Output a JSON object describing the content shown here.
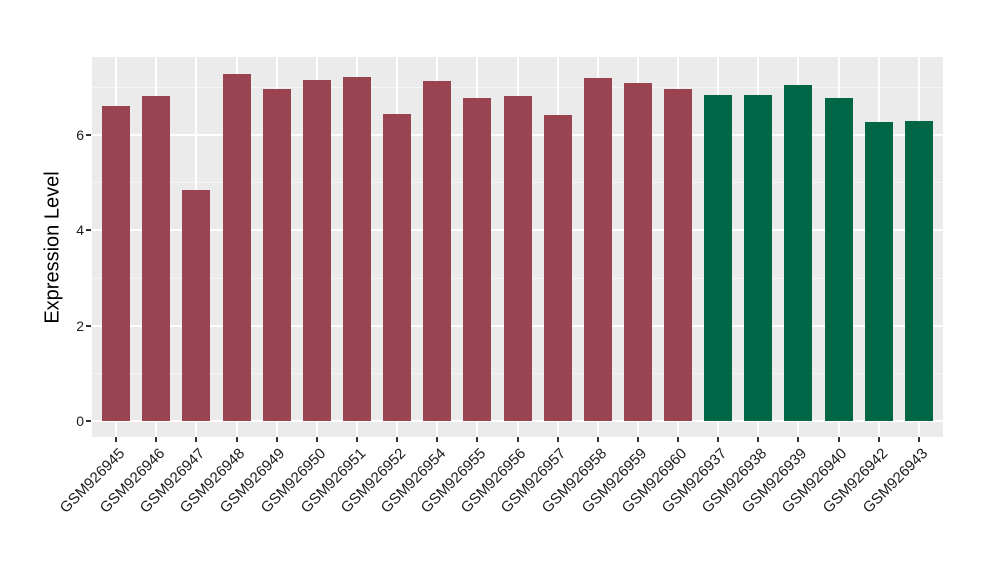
{
  "figure": {
    "background": "#FFFFFF",
    "panel_background": "#EBEBEB",
    "grid_major_color": "#FFFFFF",
    "grid_minor_color": "#F5F5F5",
    "tick_mark_color": "#333333",
    "axis_text_color": "#1C1C1C",
    "axis_title_color": "#000000"
  },
  "chart_data": {
    "type": "bar",
    "title": "",
    "xlabel": "",
    "ylabel": "Expression Level",
    "categories": [
      "GSM926945",
      "GSM926946",
      "GSM926947",
      "GSM926948",
      "GSM926949",
      "GSM926950",
      "GSM926951",
      "GSM926952",
      "GSM926954",
      "GSM926955",
      "GSM926956",
      "GSM926957",
      "GSM926958",
      "GSM926959",
      "GSM926960",
      "GSM926937",
      "GSM926938",
      "GSM926939",
      "GSM926940",
      "GSM926942",
      "GSM926943"
    ],
    "values": [
      6.61,
      6.82,
      4.85,
      7.28,
      6.96,
      7.15,
      7.22,
      6.43,
      7.13,
      6.78,
      6.81,
      6.42,
      7.18,
      7.09,
      6.95,
      6.83,
      6.84,
      7.05,
      6.78,
      6.26,
      6.29
    ],
    "bar_groups": [
      "maroon",
      "maroon",
      "maroon",
      "maroon",
      "maroon",
      "maroon",
      "maroon",
      "maroon",
      "maroon",
      "maroon",
      "maroon",
      "maroon",
      "maroon",
      "maroon",
      "maroon",
      "green",
      "green",
      "green",
      "green",
      "green",
      "green"
    ],
    "group_colors": {
      "maroon": "#9A4452",
      "green": "#006646"
    },
    "y_ticks": [
      0,
      2,
      4,
      6
    ],
    "y_minor_ticks": [
      1,
      3,
      5,
      7
    ],
    "ylim": [
      -0.33,
      7.63
    ],
    "x_tick_label_angle_deg": 45,
    "grid": "on",
    "legend": "none"
  }
}
